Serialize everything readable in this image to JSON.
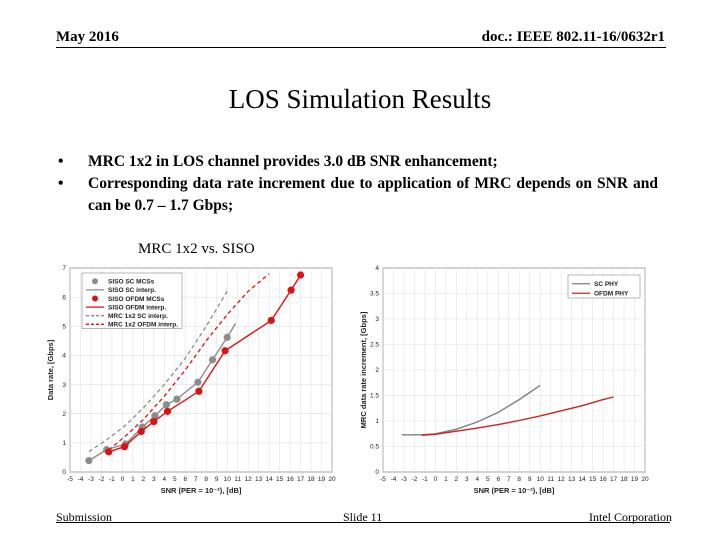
{
  "header": {
    "date": "May 2016",
    "doc_id": "doc.: IEEE 802.11-16/0632r1"
  },
  "slide": {
    "title": "LOS Simulation Results",
    "bullets": [
      "MRC 1x2 in LOS channel provides 3.0 dB SNR enhancement;",
      "Corresponding data rate increment due to application of MRC depends on SNR and can be 0.7 – 1.7 Gbps;"
    ],
    "bullet_glyph": "•",
    "subheading": "MRC 1x2 vs. SISO"
  },
  "footer": {
    "left": "Submission",
    "center": "Slide 11",
    "right": "Intel Corporation"
  },
  "chart_data": [
    {
      "type": "line",
      "xlabel": "SNR (PER = 10⁻²), [dB]",
      "ylabel": "Data rate, [Gbps]",
      "xlim": [
        -5,
        20
      ],
      "ylim": [
        0,
        7
      ],
      "xticks": [
        -5,
        -4,
        -3,
        -2,
        -1,
        0,
        1,
        2,
        3,
        4,
        5,
        6,
        7,
        8,
        9,
        10,
        11,
        12,
        13,
        14,
        15,
        16,
        17,
        18,
        19,
        20
      ],
      "yticks": [
        0,
        1,
        2,
        3,
        4,
        5,
        6,
        7
      ],
      "grid": true,
      "legend_position": "top-left",
      "series": [
        {
          "name": "SISO SC MCSs",
          "kind": "markers",
          "color": "#8c8c8c",
          "x": [
            -3.2,
            -1.5,
            0.3,
            1.9,
            3.1,
            4.2,
            5.2,
            7.2,
            8.6,
            10.0
          ],
          "y": [
            0.39,
            0.77,
            0.96,
            1.54,
            1.93,
            2.31,
            2.5,
            3.08,
            3.85,
            4.62
          ]
        },
        {
          "name": "SISO SC interp.",
          "kind": "solid",
          "color": "#8c8c8c",
          "x": [
            -3.2,
            -1.5,
            0.3,
            1.9,
            3.1,
            4.2,
            5.2,
            7.2,
            8.6,
            10.0,
            10.8
          ],
          "y": [
            0.39,
            0.77,
            0.96,
            1.54,
            1.93,
            2.31,
            2.5,
            3.08,
            3.85,
            4.62,
            5.1
          ]
        },
        {
          "name": "SISO OFDM MCSs",
          "kind": "markers",
          "color": "#dd1111",
          "x": [
            -1.3,
            0.2,
            1.8,
            3.0,
            4.3,
            7.3,
            9.8,
            14.2,
            16.1,
            17.0
          ],
          "y": [
            0.69,
            0.87,
            1.39,
            1.73,
            2.08,
            2.77,
            4.16,
            5.2,
            6.24,
            6.76
          ]
        },
        {
          "name": "SISO OFDM interp.",
          "kind": "solid",
          "color": "#dd1111",
          "x": [
            -1.3,
            0.2,
            1.8,
            3.0,
            4.3,
            7.3,
            9.8,
            14.2,
            16.1,
            17.0
          ],
          "y": [
            0.69,
            0.87,
            1.39,
            1.73,
            2.08,
            2.77,
            4.16,
            5.2,
            6.24,
            6.76
          ]
        },
        {
          "name": "MRC 1x2 SC interp.",
          "kind": "dashed",
          "color": "#8c8c8c",
          "x": [
            -3.2,
            -1.5,
            0.3,
            2.0,
            4.0,
            6.0,
            8.0,
            10.0
          ],
          "y": [
            0.7,
            1.1,
            1.6,
            2.2,
            3.0,
            3.9,
            5.0,
            6.2
          ]
        },
        {
          "name": "MRC 1x2 OFDM interp.",
          "kind": "dashed",
          "color": "#dd1111",
          "x": [
            -1.3,
            0.5,
            2.0,
            4.0,
            6.0,
            8.0,
            10.0,
            12.0,
            14.0
          ],
          "y": [
            0.75,
            1.3,
            1.8,
            2.6,
            3.5,
            4.5,
            5.4,
            6.2,
            6.8
          ]
        }
      ]
    },
    {
      "type": "line",
      "xlabel": "SNR (PER = 10⁻²), [dB]",
      "ylabel": "MRC data rate increment, [Gbps]",
      "xlim": [
        -5,
        20
      ],
      "ylim": [
        0,
        4
      ],
      "xticks": [
        -5,
        -4,
        -3,
        -2,
        -1,
        0,
        1,
        2,
        3,
        4,
        5,
        6,
        7,
        8,
        9,
        10,
        11,
        12,
        13,
        14,
        15,
        16,
        17,
        18,
        19,
        20
      ],
      "yticks": [
        0,
        0.5,
        1,
        1.5,
        2,
        2.5,
        3,
        3.5,
        4
      ],
      "grid": true,
      "legend_position": "top-right",
      "series": [
        {
          "name": "SC PHY",
          "kind": "solid",
          "color": "#808080",
          "x": [
            -3.2,
            -1.5,
            0,
            2,
            4,
            6,
            8,
            10
          ],
          "y": [
            0.73,
            0.73,
            0.75,
            0.84,
            0.98,
            1.17,
            1.42,
            1.7
          ]
        },
        {
          "name": "OFDM PHY",
          "kind": "solid",
          "color": "#cc2222",
          "x": [
            -1.3,
            0,
            2,
            4,
            6,
            8,
            10,
            12,
            14,
            16,
            17
          ],
          "y": [
            0.72,
            0.74,
            0.8,
            0.86,
            0.93,
            1.01,
            1.1,
            1.2,
            1.3,
            1.42,
            1.47
          ]
        }
      ]
    }
  ]
}
